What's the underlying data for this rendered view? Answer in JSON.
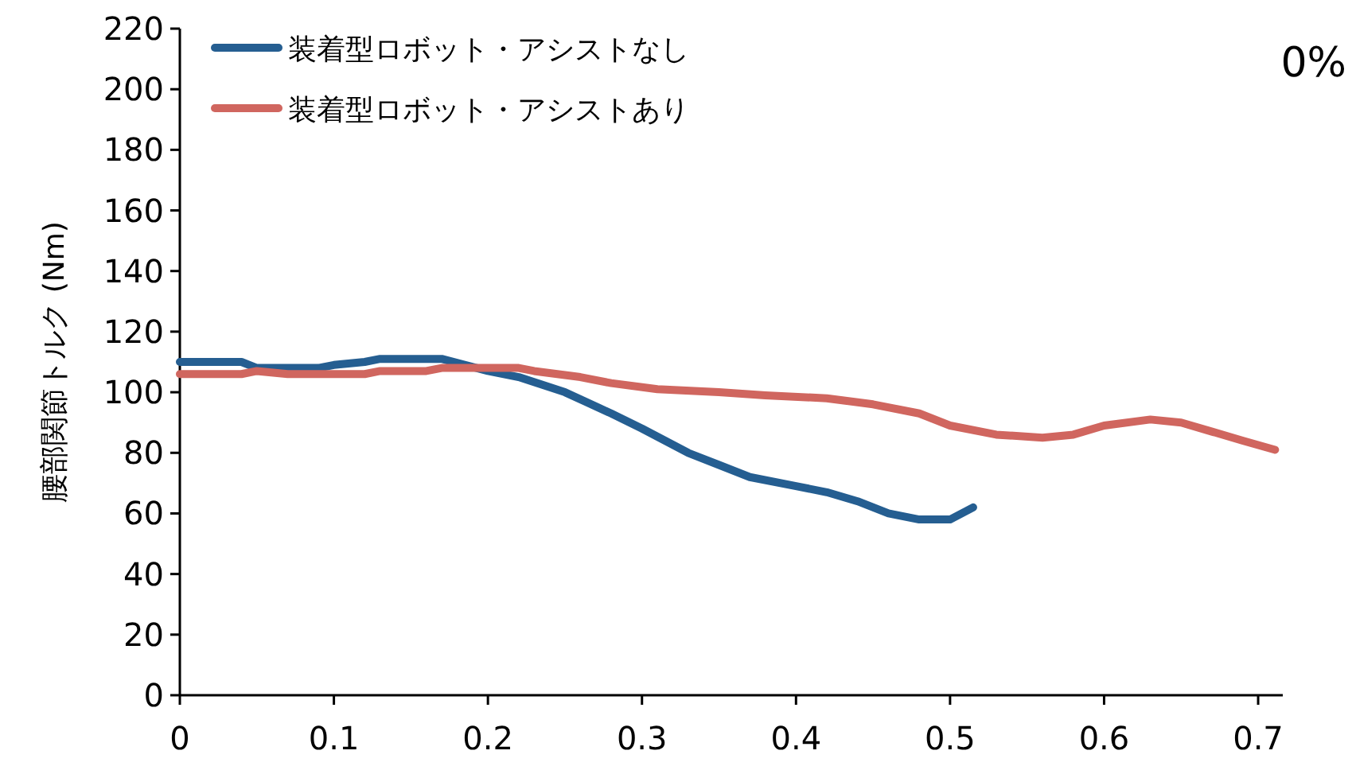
{
  "chart_data": {
    "type": "line",
    "ylabel": "腰部関節トルク (Nm)",
    "annotations": [
      "0%"
    ],
    "xlim": [
      0,
      0.716
    ],
    "xticks": [
      0,
      0.1,
      0.2,
      0.3,
      0.4,
      0.5,
      0.6,
      0.7
    ],
    "ylim": [
      0,
      220
    ],
    "yticks": [
      0,
      20,
      40,
      60,
      80,
      100,
      120,
      140,
      160,
      180,
      200,
      220
    ],
    "grid": false,
    "legend": "top left",
    "marker": "none",
    "line_style": "solid",
    "series": [
      {
        "name": "装着型ロボット・アシストなし",
        "color": "#255e91",
        "x": [
          0,
          0.04,
          0.05,
          0.09,
          0.1,
          0.12,
          0.13,
          0.17,
          0.2,
          0.22,
          0.25,
          0.28,
          0.3,
          0.33,
          0.35,
          0.37,
          0.4,
          0.42,
          0.44,
          0.46,
          0.48,
          0.5,
          0.515
        ],
        "values": [
          110,
          110,
          108,
          108,
          109,
          110,
          111,
          111,
          107,
          105,
          100,
          93,
          88,
          80,
          76,
          72,
          69,
          67,
          64,
          60,
          58,
          58,
          62
        ]
      },
      {
        "name": "装着型ロボット・アシストあり",
        "color": "#d0665f",
        "x": [
          0,
          0.04,
          0.05,
          0.07,
          0.12,
          0.13,
          0.16,
          0.17,
          0.22,
          0.23,
          0.26,
          0.28,
          0.31,
          0.35,
          0.38,
          0.42,
          0.45,
          0.48,
          0.5,
          0.53,
          0.56,
          0.58,
          0.6,
          0.63,
          0.65,
          0.67,
          0.69,
          0.711
        ],
        "values": [
          106,
          106,
          107,
          106,
          106,
          107,
          107,
          108,
          108,
          107,
          105,
          103,
          101,
          100,
          99,
          98,
          96,
          93,
          89,
          86,
          85,
          86,
          89,
          91,
          90,
          87,
          84,
          81
        ]
      }
    ]
  }
}
